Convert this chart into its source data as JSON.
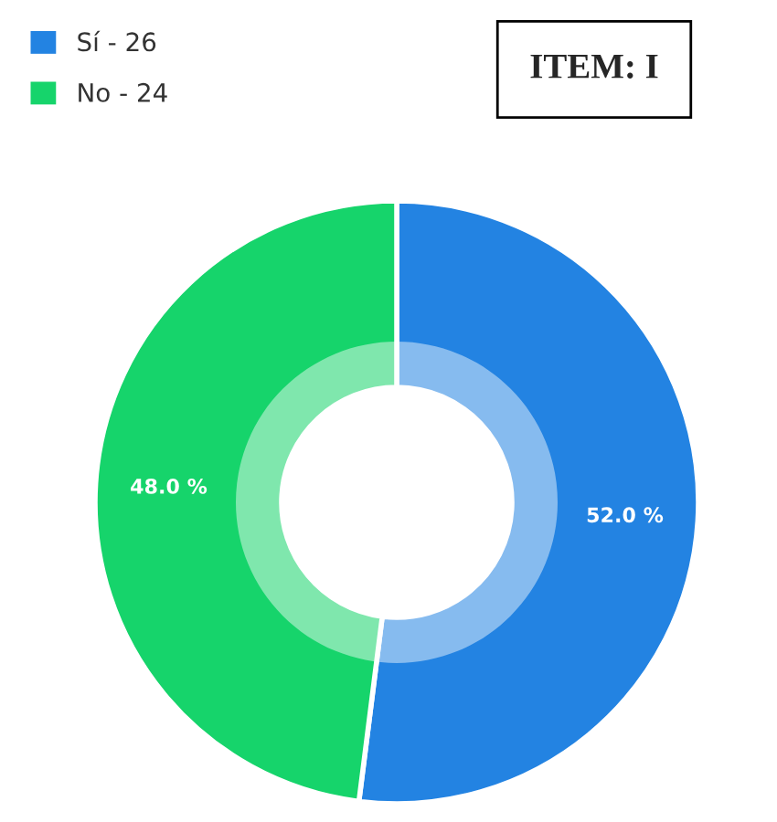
{
  "chart_data": {
    "type": "donut",
    "title": "ITEM: I",
    "categories": [
      "Sí - 26",
      "No - 24"
    ],
    "values": [
      52,
      48
    ],
    "colors": [
      "#2383e2",
      "#16d46b"
    ],
    "value_labels": [
      "52.0 %",
      "48.0 %"
    ],
    "legend": "top left"
  }
}
